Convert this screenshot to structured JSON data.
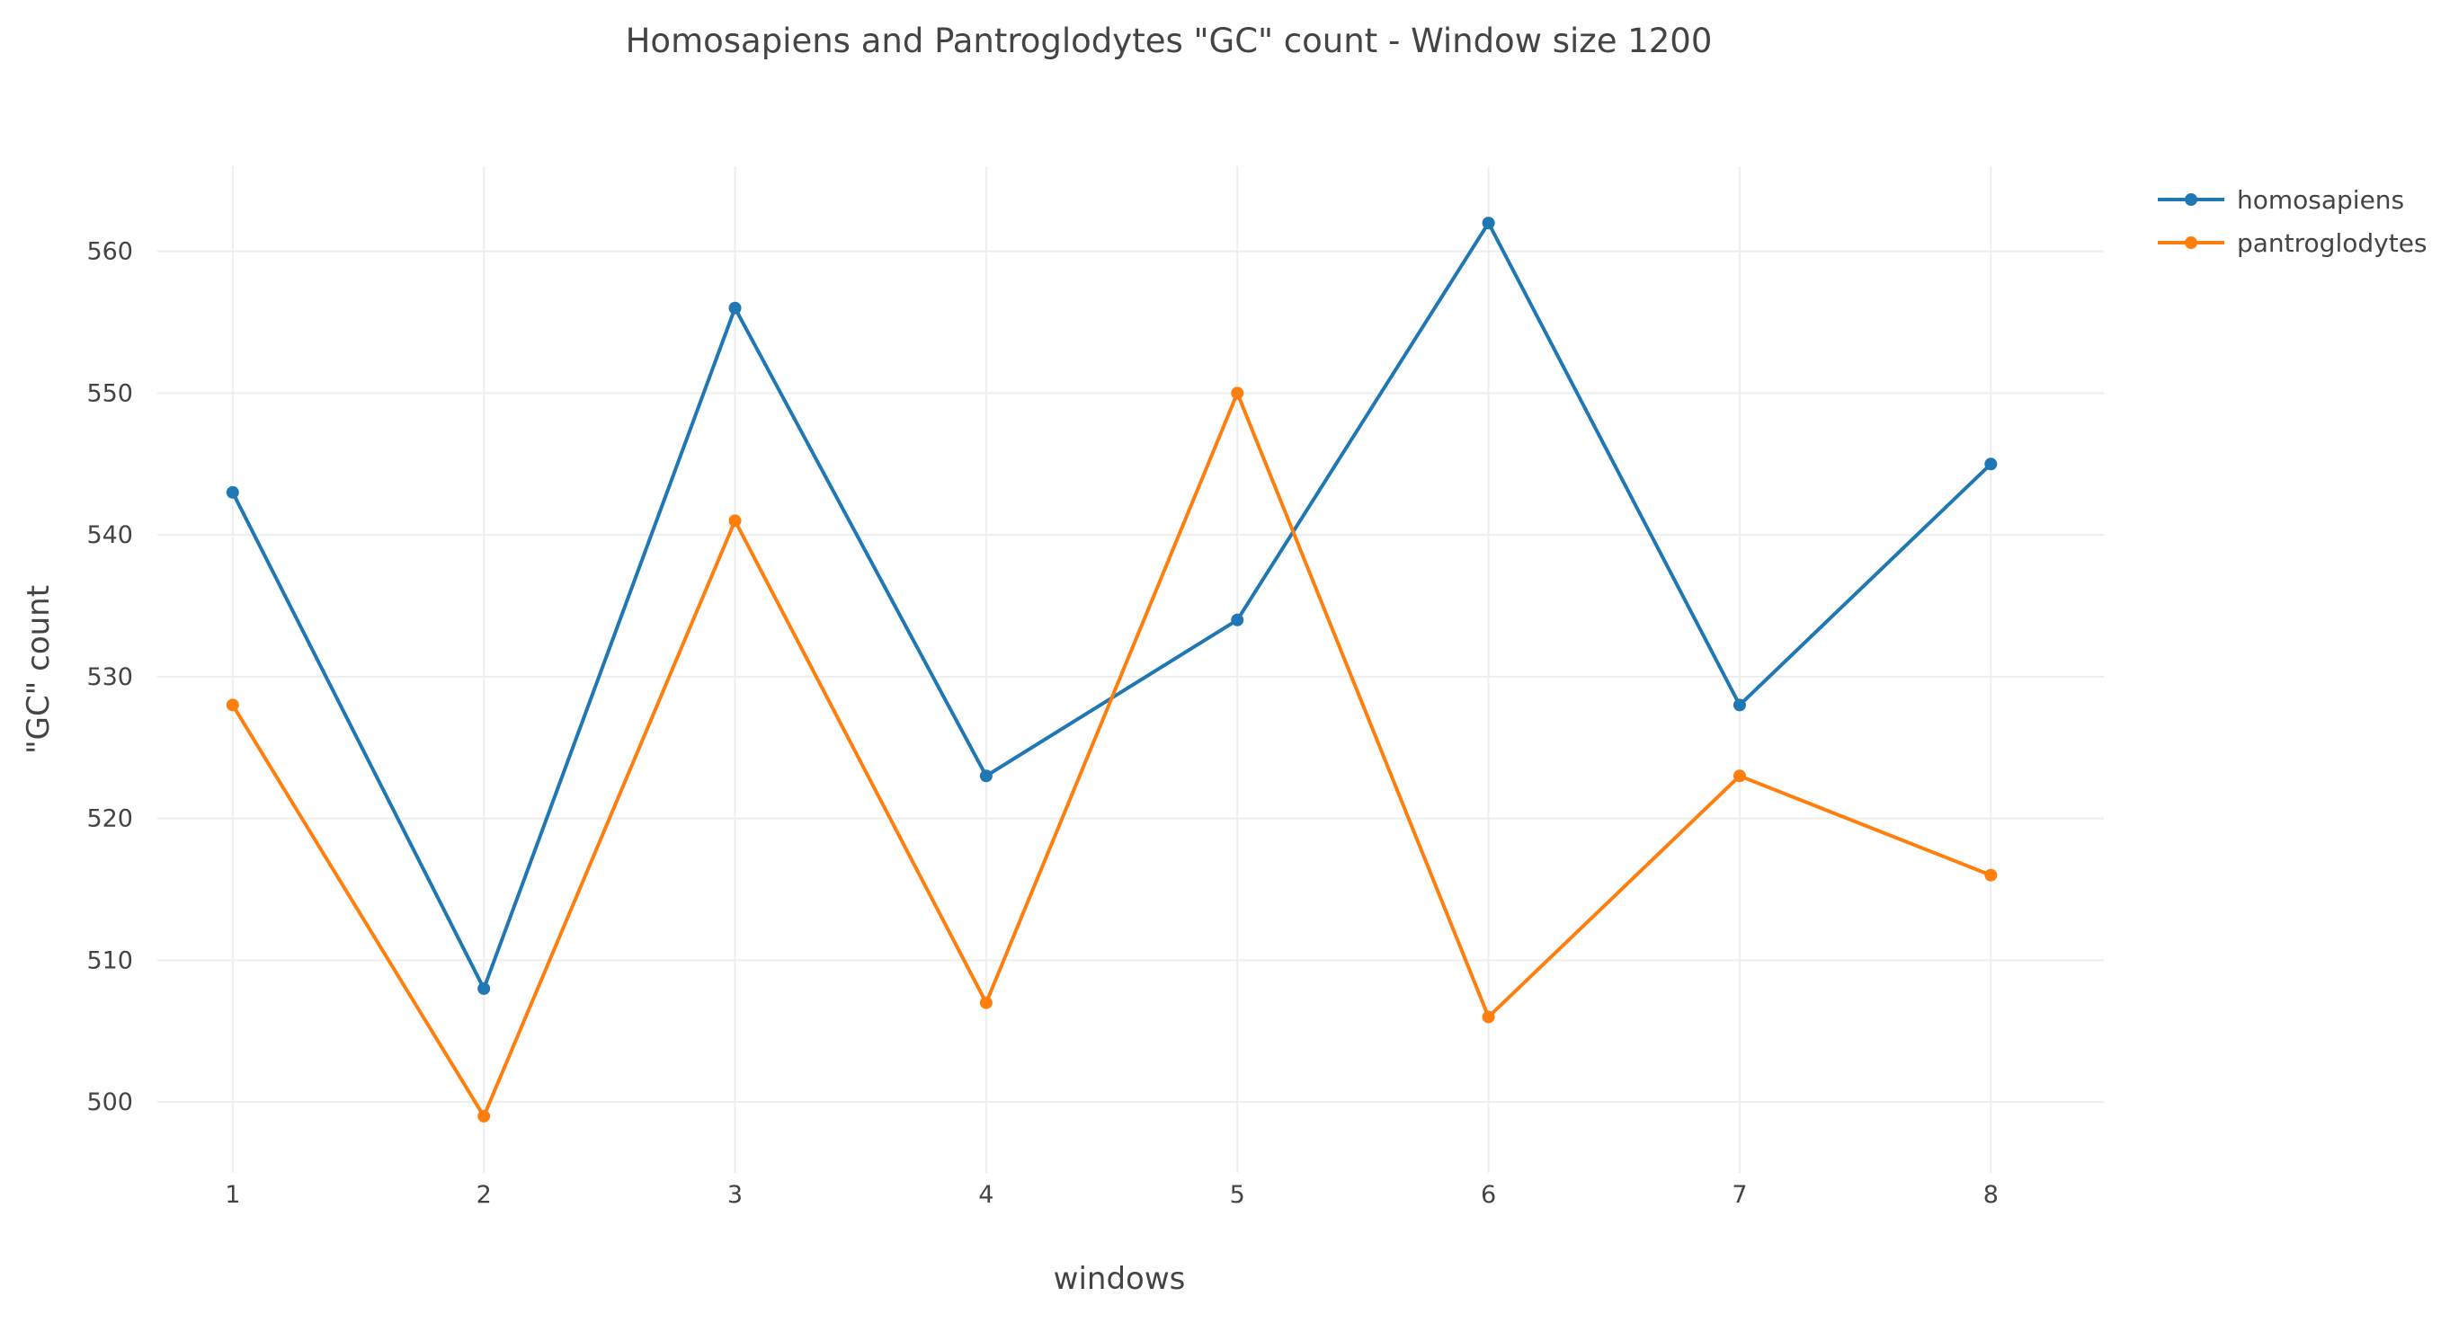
{
  "chart_data": {
    "type": "line",
    "title": "Homosapiens and Pantroglodytes \"GC\" count - Window size 1200",
    "xlabel": "windows",
    "ylabel": "\"GC\" count",
    "x": [
      1,
      2,
      3,
      4,
      5,
      6,
      7,
      8
    ],
    "x_ticks": [
      "1",
      "2",
      "3",
      "4",
      "5",
      "6",
      "7",
      "8"
    ],
    "y_ticks": [
      "500",
      "510",
      "520",
      "530",
      "540",
      "550",
      "560"
    ],
    "ylim": [
      495,
      566
    ],
    "xlim": [
      0.7,
      8.45
    ],
    "grid": true,
    "legend_position": "top-right",
    "series": [
      {
        "name": "homosapiens",
        "color": "#1f77b4",
        "values": [
          543,
          508,
          556,
          523,
          534,
          562,
          528,
          545
        ]
      },
      {
        "name": "pantroglodytes",
        "color": "#ff7f0e",
        "values": [
          528,
          499,
          541,
          507,
          550,
          506,
          523,
          516
        ]
      }
    ]
  }
}
